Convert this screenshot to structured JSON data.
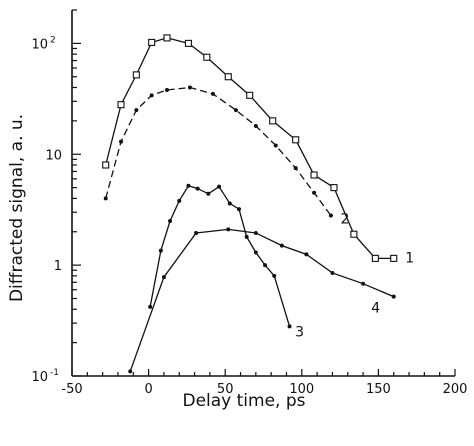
{
  "chart_data": {
    "type": "line",
    "title": "",
    "xlabel": "Delay time, ps",
    "ylabel": "Diffracted signal, a. u.",
    "xlim": [
      -50,
      200
    ],
    "ylim": [
      0.1,
      200
    ],
    "yscale": "log",
    "grid": false,
    "x_ticks": [
      {
        "value": -50,
        "label": "-50"
      },
      {
        "value": 0,
        "label": "0"
      },
      {
        "value": 50,
        "label": "50"
      },
      {
        "value": 100,
        "label": "100"
      },
      {
        "value": 150,
        "label": "150"
      },
      {
        "value": 200,
        "label": "200"
      }
    ],
    "y_ticks": [
      {
        "value": 0.1,
        "label": "10",
        "exp": "-1"
      },
      {
        "value": 1,
        "label": "1",
        "exp": ""
      },
      {
        "value": 10,
        "label": "10",
        "exp": ""
      },
      {
        "value": 100,
        "label": "10",
        "exp": "2"
      }
    ],
    "series": [
      {
        "name": "1",
        "line": "solid",
        "marker": "square",
        "x": [
          -28,
          -18,
          -8,
          2,
          12,
          26,
          38,
          52,
          66,
          81,
          96,
          108,
          121,
          134,
          148,
          160
        ],
        "y": [
          8,
          28,
          52,
          102,
          112,
          100,
          75,
          50,
          34,
          20,
          13.5,
          6.5,
          5,
          1.9,
          1.15,
          1.15
        ]
      },
      {
        "name": "2",
        "line": "dashed",
        "marker": "dot",
        "x": [
          -28,
          -18,
          -8,
          2,
          12,
          27,
          42,
          57,
          70,
          83,
          96,
          108,
          119
        ],
        "y": [
          4,
          13,
          25,
          34,
          38,
          40,
          35,
          25,
          18,
          12,
          7.5,
          4.5,
          2.8
        ]
      },
      {
        "name": "3",
        "line": "solid",
        "marker": "dot",
        "x": [
          1,
          8,
          14,
          20,
          26,
          32,
          39,
          46,
          53,
          59,
          64,
          70,
          76,
          82,
          92
        ],
        "y": [
          0.42,
          1.35,
          2.5,
          3.8,
          5.2,
          4.9,
          4.4,
          5.1,
          3.6,
          3.2,
          1.8,
          1.3,
          1.0,
          0.8,
          0.28
        ]
      },
      {
        "name": "4",
        "line": "solid",
        "marker": "dot",
        "x": [
          -12,
          10,
          31,
          52,
          70,
          87,
          103,
          120,
          140,
          160
        ],
        "y": [
          0.11,
          0.78,
          1.95,
          2.1,
          1.95,
          1.5,
          1.25,
          0.85,
          0.68,
          0.52
        ]
      }
    ]
  }
}
